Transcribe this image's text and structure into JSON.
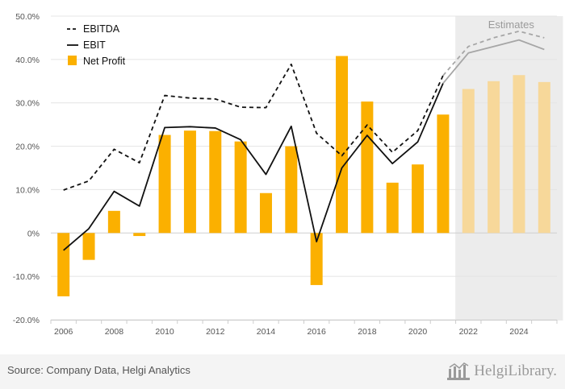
{
  "chart_data": {
    "type": "bar+line",
    "x": [
      2006,
      2007,
      2008,
      2009,
      2010,
      2011,
      2012,
      2013,
      2014,
      2015,
      2016,
      2017,
      2018,
      2019,
      2020,
      2021,
      2022,
      2023,
      2024,
      2025
    ],
    "x_tick_labels": [
      "2006",
      "2008",
      "2010",
      "2012",
      "2014",
      "2016",
      "2018",
      "2020",
      "2022",
      "2024"
    ],
    "y_tick_labels": [
      "50.0%",
      "40.0%",
      "30.0%",
      "20.0%",
      "10.0%",
      "0%",
      "-10.0%",
      "-20.0%"
    ],
    "ylim": [
      -20,
      50
    ],
    "y_unit": "%",
    "grid": "horizontal",
    "legend_position": "top-left",
    "series": [
      {
        "name": "EBITDA",
        "type": "line",
        "style": "dashed",
        "values": [
          9.9,
          12.0,
          19.3,
          16.2,
          31.7,
          31.1,
          30.9,
          29.0,
          28.9,
          38.9,
          23.0,
          17.8,
          24.9,
          18.6,
          23.6,
          36.3,
          43.0,
          45.0,
          46.5,
          45.0
        ]
      },
      {
        "name": "EBIT",
        "type": "line",
        "style": "solid",
        "values": [
          -4.0,
          1.0,
          9.6,
          6.2,
          24.3,
          24.5,
          24.2,
          21.5,
          13.5,
          24.6,
          -2.0,
          15.0,
          22.5,
          16.0,
          21.0,
          34.5,
          41.5,
          43.0,
          44.5,
          42.3
        ]
      },
      {
        "name": "Net Profit",
        "type": "bar",
        "values": [
          -14.6,
          -6.2,
          5.1,
          -0.7,
          22.6,
          23.6,
          23.5,
          21.1,
          9.2,
          20.0,
          -12.0,
          40.8,
          30.3,
          11.6,
          15.8,
          27.3,
          33.2,
          35.0,
          36.4,
          34.8
        ]
      }
    ],
    "estimates": {
      "label": "Estimates",
      "from_year": 2022
    }
  },
  "colors": {
    "bar": "#fbb000",
    "bar_estimate": "#f7d89a",
    "ebitda": "#111111",
    "ebit": "#111111",
    "estimate_line": "#a6a6a6",
    "estimate_shade": "#ececec",
    "grid": "#e4e4e4",
    "axis_text": "#555555"
  },
  "footer": {
    "source": "Source: Company Data, Helgi Analytics",
    "logo_text": "HelgiLibrary."
  }
}
